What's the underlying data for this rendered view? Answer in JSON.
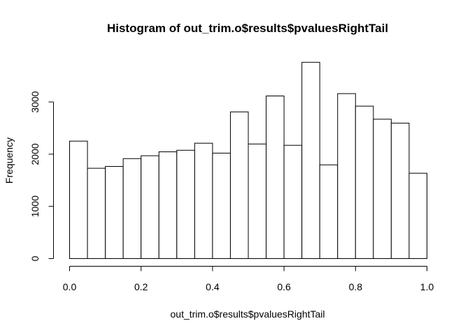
{
  "chart_data": {
    "type": "bar",
    "title": "Histogram of out_trim.o$results$pvaluesRightTail",
    "xlabel": "out_trim.o$results$pvaluesRightTail",
    "ylabel": "Frequency",
    "xlim": [
      0,
      1
    ],
    "ylim": [
      0,
      3800
    ],
    "bin_width": 0.05,
    "bins": [
      {
        "start": 0.0,
        "end": 0.05,
        "value": 2250
      },
      {
        "start": 0.05,
        "end": 0.1,
        "value": 1730
      },
      {
        "start": 0.1,
        "end": 0.15,
        "value": 1765
      },
      {
        "start": 0.15,
        "end": 0.2,
        "value": 1915
      },
      {
        "start": 0.2,
        "end": 0.25,
        "value": 1970
      },
      {
        "start": 0.25,
        "end": 0.3,
        "value": 2045
      },
      {
        "start": 0.3,
        "end": 0.35,
        "value": 2075
      },
      {
        "start": 0.35,
        "end": 0.4,
        "value": 2210
      },
      {
        "start": 0.4,
        "end": 0.45,
        "value": 2020
      },
      {
        "start": 0.45,
        "end": 0.5,
        "value": 2810
      },
      {
        "start": 0.5,
        "end": 0.55,
        "value": 2195
      },
      {
        "start": 0.55,
        "end": 0.6,
        "value": 3115
      },
      {
        "start": 0.6,
        "end": 0.65,
        "value": 2170
      },
      {
        "start": 0.65,
        "end": 0.7,
        "value": 3760
      },
      {
        "start": 0.7,
        "end": 0.75,
        "value": 1795
      },
      {
        "start": 0.75,
        "end": 0.8,
        "value": 3160
      },
      {
        "start": 0.8,
        "end": 0.85,
        "value": 2920
      },
      {
        "start": 0.85,
        "end": 0.9,
        "value": 2670
      },
      {
        "start": 0.9,
        "end": 0.95,
        "value": 2595
      },
      {
        "start": 0.95,
        "end": 1.0,
        "value": 1635
      }
    ],
    "x_ticks": [
      0.0,
      0.2,
      0.4,
      0.6,
      0.8,
      1.0
    ],
    "x_tick_labels": [
      "0.0",
      "0.2",
      "0.4",
      "0.6",
      "0.8",
      "1.0"
    ],
    "y_ticks": [
      0,
      1000,
      2000,
      3000
    ],
    "y_tick_labels": [
      "0",
      "1000",
      "2000",
      "3000"
    ],
    "grid": false,
    "legend": "none"
  }
}
